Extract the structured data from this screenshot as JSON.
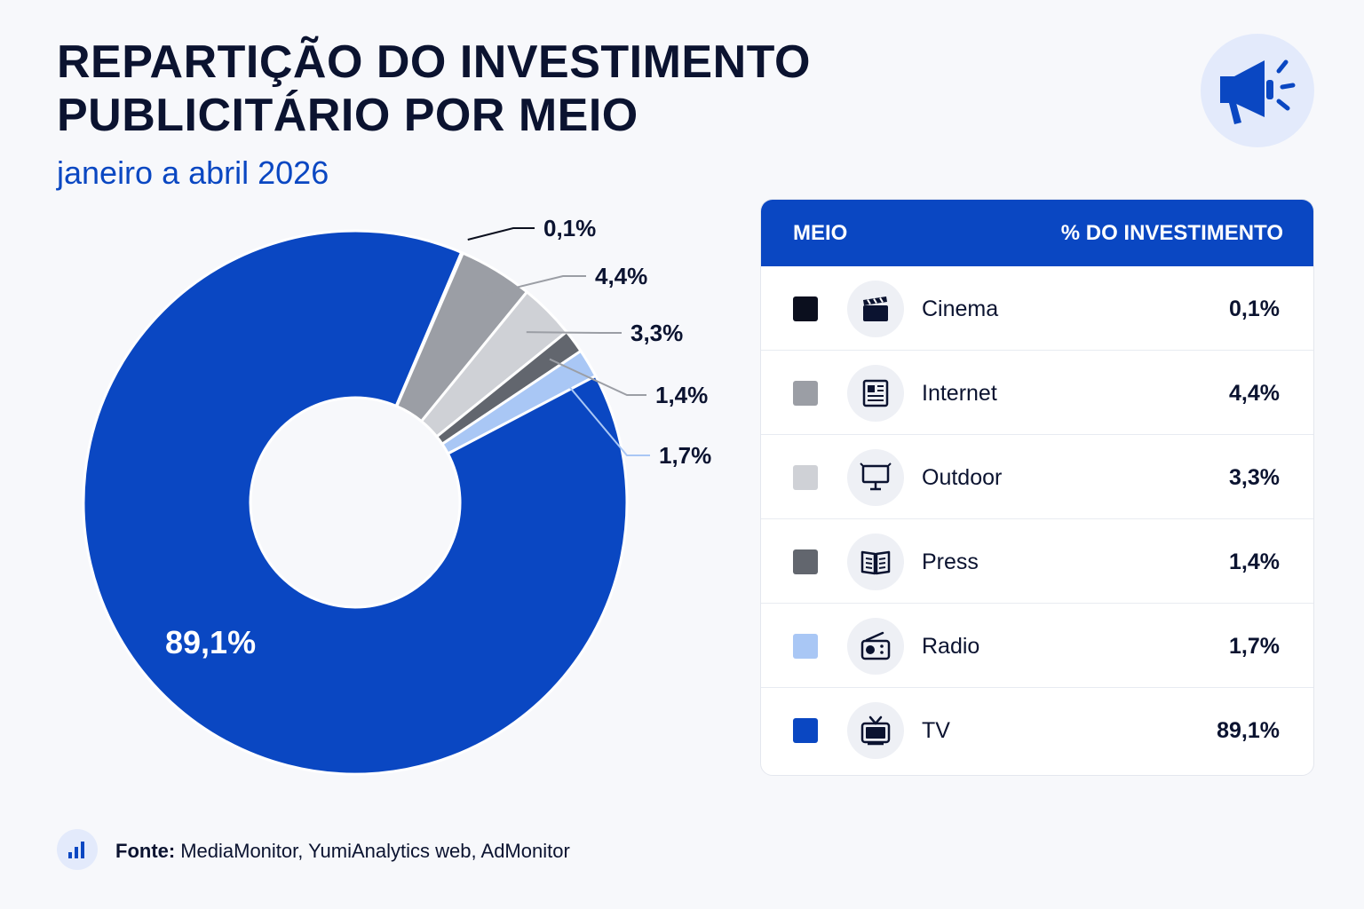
{
  "header": {
    "title": "REPARTIÇÃO DO INVESTIMENTO PUBLICITÁRIO POR MEIO",
    "subtitle": "janeiro a abril 2026",
    "badge_icon": "megaphone-icon"
  },
  "chart_data": {
    "type": "pie",
    "variant": "donut",
    "title": "REPARTIÇÃO DO INVESTIMENTO PUBLICITÁRIO POR MEIO",
    "subtitle": "janeiro a abril 2026",
    "categories": [
      "Cinema",
      "Internet",
      "Outdoor",
      "Press",
      "Radio",
      "TV"
    ],
    "values": [
      0.1,
      4.4,
      3.3,
      1.4,
      1.7,
      89.1
    ],
    "labels": [
      "0,1%",
      "4,4%",
      "3,3%",
      "1,4%",
      "1,7%",
      "89,1%"
    ],
    "colors": [
      "#0b0f1e",
      "#9b9ea5",
      "#cfd1d6",
      "#62666e",
      "#a9c7f5",
      "#0a47c2"
    ],
    "unit": "%"
  },
  "table": {
    "header_medium": "MEIO",
    "header_share": "% DO INVESTIMENTO",
    "rows": [
      {
        "name": "Cinema",
        "value": "0,1%",
        "color": "#0b0f1e",
        "icon": "clapperboard-icon"
      },
      {
        "name": "Internet",
        "value": "4,4%",
        "color": "#9b9ea5",
        "icon": "newspaper-icon"
      },
      {
        "name": "Outdoor",
        "value": "3,3%",
        "color": "#cfd1d6",
        "icon": "billboard-icon"
      },
      {
        "name": "Press",
        "value": "1,4%",
        "color": "#62666e",
        "icon": "open-book-icon"
      },
      {
        "name": "Radio",
        "value": "1,7%",
        "color": "#a9c7f5",
        "icon": "radio-icon"
      },
      {
        "name": "TV",
        "value": "89,1%",
        "color": "#0a47c2",
        "icon": "tv-icon"
      }
    ]
  },
  "footer": {
    "source_label": "Fonte:",
    "source_text": "MediaMonitor, YumiAnalytics web, AdMonitor",
    "icon": "bar-chart-icon"
  }
}
